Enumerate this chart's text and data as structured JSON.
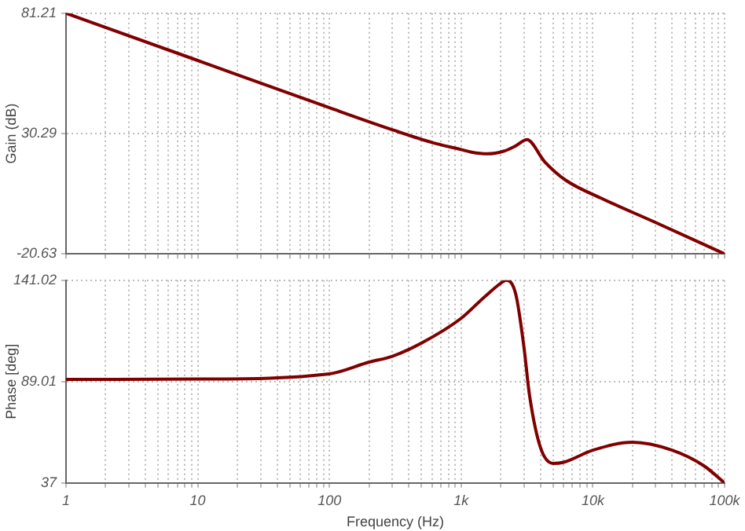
{
  "chart_data": [
    {
      "type": "line",
      "ylabel": "Gain (dB)",
      "log": "x",
      "grid": true,
      "marker": "none",
      "line_style": "solid",
      "tick_labels": "y",
      "xlim": [
        1,
        100000
      ],
      "ylim": [
        -20.63,
        81.21
      ],
      "xticks": [
        {
          "value": 1,
          "label": null
        },
        {
          "value": 2,
          "label": null
        },
        {
          "value": 3,
          "label": null
        },
        {
          "value": 4,
          "label": null
        },
        {
          "value": 5,
          "label": null
        },
        {
          "value": 6,
          "label": null
        },
        {
          "value": 7,
          "label": null
        },
        {
          "value": 8,
          "label": null
        },
        {
          "value": 9,
          "label": null
        },
        {
          "value": 10,
          "label": null
        },
        {
          "value": 20,
          "label": null
        },
        {
          "value": 30,
          "label": null
        },
        {
          "value": 40,
          "label": null
        },
        {
          "value": 50,
          "label": null
        },
        {
          "value": 60,
          "label": null
        },
        {
          "value": 70,
          "label": null
        },
        {
          "value": 80,
          "label": null
        },
        {
          "value": 90,
          "label": null
        },
        {
          "value": 100,
          "label": null
        },
        {
          "value": 200,
          "label": null
        },
        {
          "value": 300,
          "label": null
        },
        {
          "value": 400,
          "label": null
        },
        {
          "value": 500,
          "label": null
        },
        {
          "value": 600,
          "label": null
        },
        {
          "value": 700,
          "label": null
        },
        {
          "value": 800,
          "label": null
        },
        {
          "value": 900,
          "label": null
        },
        {
          "value": 1000,
          "label": null
        },
        {
          "value": 2000,
          "label": null
        },
        {
          "value": 3000,
          "label": null
        },
        {
          "value": 4000,
          "label": null
        },
        {
          "value": 5000,
          "label": null
        },
        {
          "value": 6000,
          "label": null
        },
        {
          "value": 7000,
          "label": null
        },
        {
          "value": 8000,
          "label": null
        },
        {
          "value": 9000,
          "label": null
        },
        {
          "value": 10000,
          "label": null
        },
        {
          "value": 20000,
          "label": null
        },
        {
          "value": 30000,
          "label": null
        },
        {
          "value": 40000,
          "label": null
        },
        {
          "value": 50000,
          "label": null
        },
        {
          "value": 60000,
          "label": null
        },
        {
          "value": 70000,
          "label": null
        },
        {
          "value": 80000,
          "label": null
        },
        {
          "value": 90000,
          "label": null
        },
        {
          "value": 100000,
          "label": null
        }
      ],
      "yticks": [
        -20.63,
        30.29,
        81.21
      ],
      "series": [
        {
          "color": "#800000",
          "x": [
            1,
            10,
            100,
            300,
            600,
            1000,
            1200,
            1580,
            2100,
            2600,
            3160,
            4300,
            6200,
            11700,
            29500,
            100000
          ],
          "values": [
            81.21,
            61.2,
            41.2,
            31.9,
            26.5,
            23.5,
            22.4,
            21.7,
            22.8,
            25.1,
            27.7,
            18.4,
            10.6,
            2.8,
            -7.2,
            -20.63
          ]
        }
      ]
    },
    {
      "type": "line",
      "xlabel": "Frequency (Hz)",
      "ylabel": "Phase [deg]",
      "log": "x",
      "grid": true,
      "marker": "none",
      "line_style": "solid",
      "xlim": [
        1,
        100000
      ],
      "ylim": [
        37.0,
        141.02
      ],
      "xticks": [
        {
          "value": 1,
          "label": "1"
        },
        {
          "value": 2,
          "label": null
        },
        {
          "value": 3,
          "label": null
        },
        {
          "value": 4,
          "label": null
        },
        {
          "value": 5,
          "label": null
        },
        {
          "value": 6,
          "label": null
        },
        {
          "value": 7,
          "label": null
        },
        {
          "value": 8,
          "label": null
        },
        {
          "value": 9,
          "label": null
        },
        {
          "value": 10,
          "label": "10"
        },
        {
          "value": 20,
          "label": null
        },
        {
          "value": 30,
          "label": null
        },
        {
          "value": 40,
          "label": null
        },
        {
          "value": 50,
          "label": null
        },
        {
          "value": 60,
          "label": null
        },
        {
          "value": 70,
          "label": null
        },
        {
          "value": 80,
          "label": null
        },
        {
          "value": 90,
          "label": null
        },
        {
          "value": 100,
          "label": "100"
        },
        {
          "value": 200,
          "label": null
        },
        {
          "value": 300,
          "label": null
        },
        {
          "value": 400,
          "label": null
        },
        {
          "value": 500,
          "label": null
        },
        {
          "value": 600,
          "label": null
        },
        {
          "value": 700,
          "label": null
        },
        {
          "value": 800,
          "label": null
        },
        {
          "value": 900,
          "label": null
        },
        {
          "value": 1000,
          "label": "1k"
        },
        {
          "value": 2000,
          "label": null
        },
        {
          "value": 3000,
          "label": null
        },
        {
          "value": 4000,
          "label": null
        },
        {
          "value": 5000,
          "label": null
        },
        {
          "value": 6000,
          "label": null
        },
        {
          "value": 7000,
          "label": null
        },
        {
          "value": 8000,
          "label": null
        },
        {
          "value": 9000,
          "label": null
        },
        {
          "value": 10000,
          "label": "10k"
        },
        {
          "value": 20000,
          "label": null
        },
        {
          "value": 30000,
          "label": null
        },
        {
          "value": 40000,
          "label": null
        },
        {
          "value": 50000,
          "label": null
        },
        {
          "value": 60000,
          "label": null
        },
        {
          "value": 70000,
          "label": null
        },
        {
          "value": 80000,
          "label": null
        },
        {
          "value": 90000,
          "label": null
        },
        {
          "value": 100000,
          "label": "100k"
        }
      ],
      "yticks": [
        37.0,
        89.01,
        141.02
      ],
      "series": [
        {
          "color": "#800000",
          "x": [
            1,
            10,
            100,
            200,
            300,
            500,
            1000,
            1500,
            2100,
            2200,
            2600,
            3000,
            3300,
            4000,
            5000,
            6000,
            10000,
            20000,
            40000,
            70000,
            100000
          ],
          "values": [
            90.1,
            90.3,
            93.0,
            99.0,
            102.0,
            108.8,
            121.5,
            132.4,
            140.5,
            141.02,
            133.8,
            106.6,
            82.3,
            55.2,
            47.0,
            47.6,
            53.8,
            57.9,
            53.8,
            45.7,
            37.0
          ]
        }
      ]
    }
  ]
}
